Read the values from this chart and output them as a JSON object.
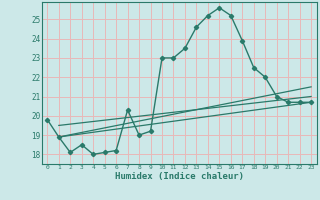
{
  "background_color": "#cce8e8",
  "grid_color": "#e8b8b8",
  "line_color": "#2a7a6a",
  "xlabel": "Humidex (Indice chaleur)",
  "xlim": [
    -0.5,
    23.5
  ],
  "ylim": [
    17.5,
    25.9
  ],
  "yticks": [
    18,
    19,
    20,
    21,
    22,
    23,
    24,
    25
  ],
  "xticks": [
    0,
    1,
    2,
    3,
    4,
    5,
    6,
    7,
    8,
    9,
    10,
    11,
    12,
    13,
    14,
    15,
    16,
    17,
    18,
    19,
    20,
    21,
    22,
    23
  ],
  "series1_x": [
    0,
    1,
    2,
    3,
    4,
    5,
    6,
    7,
    8,
    9,
    10,
    11,
    12,
    13,
    14,
    15,
    16,
    17,
    18,
    19,
    20,
    21,
    22,
    23
  ],
  "series1_y": [
    19.8,
    18.9,
    18.1,
    18.5,
    18.0,
    18.1,
    18.2,
    20.3,
    19.0,
    19.2,
    23.0,
    23.0,
    23.5,
    24.6,
    25.2,
    25.6,
    25.2,
    23.9,
    22.5,
    22.0,
    21.0,
    20.7,
    20.7,
    20.7
  ],
  "series2_x": [
    1,
    23
  ],
  "series2_y": [
    18.9,
    20.7
  ],
  "series3_x": [
    1,
    23
  ],
  "series3_y": [
    18.9,
    21.5
  ],
  "series4_x": [
    1,
    23
  ],
  "series4_y": [
    19.5,
    21.0
  ]
}
